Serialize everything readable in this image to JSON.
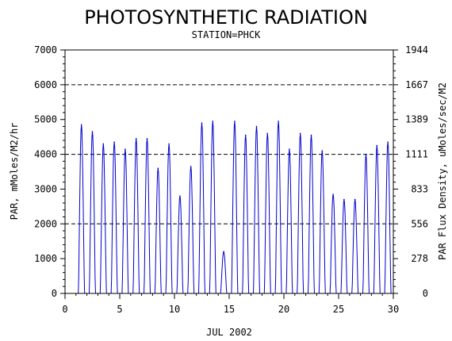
{
  "chart_data": {
    "type": "line",
    "title": "PHOTOSYNTHETIC RADIATION",
    "subtitle": "STATION=PHCK",
    "xlabel": "JUL 2002",
    "ylabel_left": "PAR, mMoles/M2/hr",
    "ylabel_right": "PAR Flux Density, uMoles/sec/M2",
    "xlim": [
      0,
      30
    ],
    "ylim": [
      0,
      7000
    ],
    "x_ticks": [
      0,
      5,
      10,
      15,
      20,
      25,
      30
    ],
    "y_ticks_left": [
      0,
      1000,
      2000,
      3000,
      4000,
      5000,
      6000,
      7000
    ],
    "y_ticks_right": [
      0,
      278,
      556,
      833,
      1111,
      1389,
      1667,
      1944
    ],
    "reference_lines": [
      2000,
      4000,
      6000
    ],
    "line_color": "#0000cc",
    "daily_peaks": [
      {
        "day": 1.5,
        "peak": 4850
      },
      {
        "day": 2.5,
        "peak": 4650
      },
      {
        "day": 3.5,
        "peak": 4300
      },
      {
        "day": 4.5,
        "peak": 4350
      },
      {
        "day": 5.5,
        "peak": 4150
      },
      {
        "day": 6.5,
        "peak": 4450
      },
      {
        "day": 7.5,
        "peak": 4450
      },
      {
        "day": 8.5,
        "peak": 3600
      },
      {
        "day": 9.5,
        "peak": 4300
      },
      {
        "day": 10.5,
        "peak": 2800
      },
      {
        "day": 11.5,
        "peak": 3650
      },
      {
        "day": 12.5,
        "peak": 4900
      },
      {
        "day": 13.5,
        "peak": 4950
      },
      {
        "day": 14.5,
        "peak": 1200
      },
      {
        "day": 15.5,
        "peak": 4950
      },
      {
        "day": 16.5,
        "peak": 4550
      },
      {
        "day": 17.5,
        "peak": 4800
      },
      {
        "day": 18.5,
        "peak": 4600
      },
      {
        "day": 19.5,
        "peak": 4950
      },
      {
        "day": 20.5,
        "peak": 4150
      },
      {
        "day": 21.5,
        "peak": 4600
      },
      {
        "day": 22.5,
        "peak": 4550
      },
      {
        "day": 23.5,
        "peak": 4100
      },
      {
        "day": 24.5,
        "peak": 2850
      },
      {
        "day": 25.5,
        "peak": 2700
      },
      {
        "day": 26.5,
        "peak": 2700
      },
      {
        "day": 27.5,
        "peak": 4000
      },
      {
        "day": 28.5,
        "peak": 4250
      },
      {
        "day": 29.5,
        "peak": 4350
      }
    ]
  }
}
